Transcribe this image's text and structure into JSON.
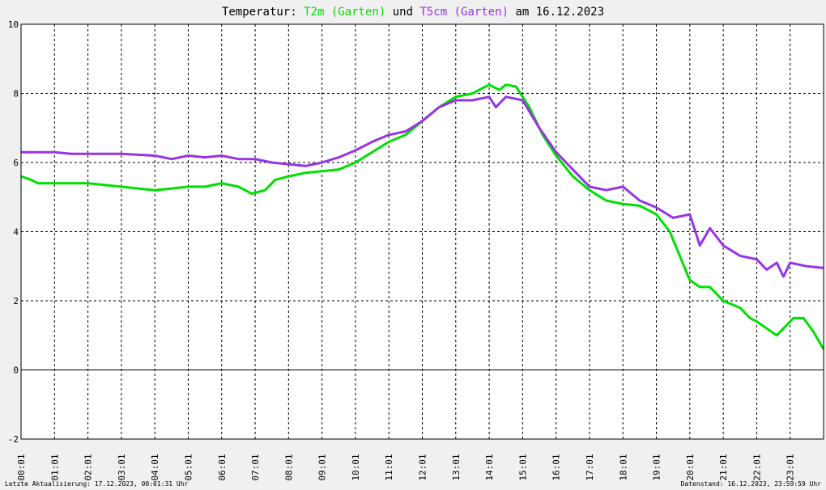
{
  "chart_data": {
    "type": "line",
    "title": {
      "prefix": "Temperatur:",
      "series1": "T2m (Garten)",
      "connector": "und",
      "series2": "T5cm (Garten)",
      "suffix": "am 16.12.2023"
    },
    "ylim": [
      -2,
      10
    ],
    "yticks": [
      -2,
      0,
      2,
      4,
      6,
      8,
      10
    ],
    "xlim": [
      0,
      24
    ],
    "xticks": [
      {
        "h": 0,
        "label": "00:01"
      },
      {
        "h": 1,
        "label": "01:01"
      },
      {
        "h": 2,
        "label": "02:01"
      },
      {
        "h": 3,
        "label": "03:01"
      },
      {
        "h": 4,
        "label": "04:01"
      },
      {
        "h": 5,
        "label": "05:01"
      },
      {
        "h": 6,
        "label": "06:01"
      },
      {
        "h": 7,
        "label": "07:01"
      },
      {
        "h": 8,
        "label": "08:01"
      },
      {
        "h": 9,
        "label": "09:01"
      },
      {
        "h": 10,
        "label": "10:01"
      },
      {
        "h": 11,
        "label": "11:01"
      },
      {
        "h": 12,
        "label": "12:01"
      },
      {
        "h": 13,
        "label": "13:01"
      },
      {
        "h": 14,
        "label": "14:01"
      },
      {
        "h": 15,
        "label": "15:01"
      },
      {
        "h": 16,
        "label": "16:01"
      },
      {
        "h": 17,
        "label": "17:01"
      },
      {
        "h": 18,
        "label": "18:01"
      },
      {
        "h": 19,
        "label": "19:01"
      },
      {
        "h": 20,
        "label": "20:01"
      },
      {
        "h": 21,
        "label": "21:01"
      },
      {
        "h": 22,
        "label": "22:01"
      },
      {
        "h": 23,
        "label": "23:01"
      }
    ],
    "grid": true,
    "series": [
      {
        "name": "T2m (Garten)",
        "color": "#00e000",
        "points": [
          [
            0,
            5.6
          ],
          [
            0.3,
            5.5
          ],
          [
            0.5,
            5.4
          ],
          [
            1.0,
            5.4
          ],
          [
            1.5,
            5.4
          ],
          [
            2.0,
            5.4
          ],
          [
            2.5,
            5.35
          ],
          [
            3.0,
            5.3
          ],
          [
            3.5,
            5.25
          ],
          [
            4.0,
            5.2
          ],
          [
            4.5,
            5.25
          ],
          [
            5.0,
            5.3
          ],
          [
            5.5,
            5.3
          ],
          [
            6.0,
            5.4
          ],
          [
            6.5,
            5.3
          ],
          [
            6.9,
            5.1
          ],
          [
            7.3,
            5.2
          ],
          [
            7.6,
            5.5
          ],
          [
            8.0,
            5.6
          ],
          [
            8.5,
            5.7
          ],
          [
            9.0,
            5.75
          ],
          [
            9.5,
            5.8
          ],
          [
            10.0,
            6.0
          ],
          [
            10.5,
            6.3
          ],
          [
            11.0,
            6.6
          ],
          [
            11.5,
            6.8
          ],
          [
            12.0,
            7.2
          ],
          [
            12.5,
            7.6
          ],
          [
            13.0,
            7.9
          ],
          [
            13.5,
            8.0
          ],
          [
            14.0,
            8.25
          ],
          [
            14.3,
            8.1
          ],
          [
            14.5,
            8.25
          ],
          [
            14.8,
            8.2
          ],
          [
            15.2,
            7.6
          ],
          [
            15.6,
            6.8
          ],
          [
            16.0,
            6.2
          ],
          [
            16.5,
            5.6
          ],
          [
            17.0,
            5.2
          ],
          [
            17.5,
            4.9
          ],
          [
            18.0,
            4.8
          ],
          [
            18.5,
            4.75
          ],
          [
            19.0,
            4.5
          ],
          [
            19.4,
            4.0
          ],
          [
            19.7,
            3.3
          ],
          [
            20.0,
            2.6
          ],
          [
            20.3,
            2.4
          ],
          [
            20.6,
            2.4
          ],
          [
            21.0,
            2.0
          ],
          [
            21.5,
            1.8
          ],
          [
            21.8,
            1.5
          ],
          [
            22.0,
            1.4
          ],
          [
            22.3,
            1.2
          ],
          [
            22.6,
            1.0
          ],
          [
            22.9,
            1.3
          ],
          [
            23.1,
            1.5
          ],
          [
            23.4,
            1.5
          ],
          [
            23.7,
            1.1
          ],
          [
            24.0,
            0.6
          ]
        ]
      },
      {
        "name": "T5cm (Garten)",
        "color": "#9933e6",
        "points": [
          [
            0,
            6.3
          ],
          [
            1.0,
            6.3
          ],
          [
            1.5,
            6.25
          ],
          [
            2.0,
            6.25
          ],
          [
            3.0,
            6.25
          ],
          [
            4.0,
            6.2
          ],
          [
            4.5,
            6.1
          ],
          [
            5.0,
            6.2
          ],
          [
            5.5,
            6.15
          ],
          [
            6.0,
            6.2
          ],
          [
            6.5,
            6.1
          ],
          [
            7.0,
            6.1
          ],
          [
            7.5,
            6.0
          ],
          [
            8.0,
            5.95
          ],
          [
            8.5,
            5.9
          ],
          [
            9.0,
            6.0
          ],
          [
            9.5,
            6.15
          ],
          [
            10.0,
            6.35
          ],
          [
            10.5,
            6.6
          ],
          [
            11.0,
            6.8
          ],
          [
            11.5,
            6.9
          ],
          [
            12.0,
            7.2
          ],
          [
            12.5,
            7.6
          ],
          [
            13.0,
            7.8
          ],
          [
            13.5,
            7.8
          ],
          [
            14.0,
            7.9
          ],
          [
            14.2,
            7.6
          ],
          [
            14.5,
            7.9
          ],
          [
            15.0,
            7.8
          ],
          [
            15.5,
            7.0
          ],
          [
            16.0,
            6.3
          ],
          [
            16.5,
            5.8
          ],
          [
            17.0,
            5.3
          ],
          [
            17.5,
            5.2
          ],
          [
            18.0,
            5.3
          ],
          [
            18.5,
            4.9
          ],
          [
            19.0,
            4.7
          ],
          [
            19.5,
            4.4
          ],
          [
            20.0,
            4.5
          ],
          [
            20.3,
            3.6
          ],
          [
            20.6,
            4.1
          ],
          [
            21.0,
            3.6
          ],
          [
            21.5,
            3.3
          ],
          [
            22.0,
            3.2
          ],
          [
            22.3,
            2.9
          ],
          [
            22.6,
            3.1
          ],
          [
            22.8,
            2.7
          ],
          [
            23.0,
            3.1
          ],
          [
            23.5,
            3.0
          ],
          [
            24.0,
            2.95
          ]
        ]
      }
    ],
    "footer_left": "Letzte Aktualisierung: 17.12.2023, 00:01:31 Uhr",
    "footer_right": "Datenstand: 16.12.2023, 23:59:59 Uhr"
  }
}
